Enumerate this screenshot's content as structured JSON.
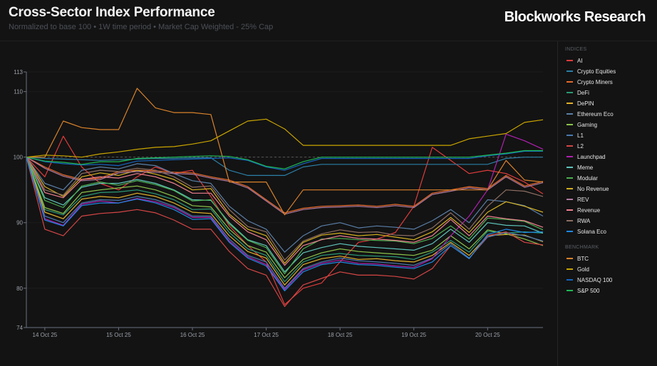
{
  "header": {
    "title": "Cross-Sector Index Performance",
    "subtitle": "Normalized to base 100 • 1W time period • Market Cap Weighted - 25% Cap",
    "brand": "Blockworks Research"
  },
  "legend": {
    "indices_heading": "INDICES",
    "benchmark_heading": "BENCHMARK"
  },
  "chart_data": {
    "type": "line",
    "title": "Cross-Sector Index Performance",
    "ylim": [
      74,
      113
    ],
    "yticks": [
      74,
      80,
      90,
      100,
      110,
      113
    ],
    "baseline": 100,
    "grid": true,
    "legend_position": "right",
    "xticks": [
      {
        "t": "2025-10-14T00:00",
        "label": "14 Oct 25"
      },
      {
        "t": "2025-10-15T00:00",
        "label": "15 Oct 25"
      },
      {
        "t": "2025-10-16T00:00",
        "label": "16 Oct 25"
      },
      {
        "t": "2025-10-17T00:00",
        "label": "17 Oct 25"
      },
      {
        "t": "2025-10-18T00:00",
        "label": "18 Oct 25"
      },
      {
        "t": "2025-10-19T00:00",
        "label": "19 Oct 25"
      },
      {
        "t": "2025-10-20T00:00",
        "label": "20 Oct 25"
      }
    ],
    "x": [
      "2025-10-13T18:00",
      "2025-10-14T00:00",
      "2025-10-14T06:00",
      "2025-10-14T12:00",
      "2025-10-14T18:00",
      "2025-10-15T00:00",
      "2025-10-15T06:00",
      "2025-10-15T12:00",
      "2025-10-15T18:00",
      "2025-10-16T00:00",
      "2025-10-16T06:00",
      "2025-10-16T12:00",
      "2025-10-16T18:00",
      "2025-10-17T00:00",
      "2025-10-17T06:00",
      "2025-10-17T12:00",
      "2025-10-17T18:00",
      "2025-10-18T00:00",
      "2025-10-18T06:00",
      "2025-10-18T12:00",
      "2025-10-18T18:00",
      "2025-10-19T00:00",
      "2025-10-19T06:00",
      "2025-10-19T12:00",
      "2025-10-19T18:00",
      "2025-10-20T00:00",
      "2025-10-20T06:00",
      "2025-10-20T12:00",
      "2025-10-20T18:00"
    ],
    "series": [
      {
        "name": "AI",
        "group": "indices",
        "color": "#e03b3b",
        "values": [
          100,
          97,
          103.2,
          98.5,
          96,
          95,
          97,
          98.5,
          97.5,
          98,
          94,
          89.5,
          86.5,
          84,
          77.5,
          80,
          80.8,
          84,
          87,
          87.5,
          88.5,
          92.5,
          101.5,
          99.5,
          97.5,
          98,
          97.5,
          96.2,
          94.4
        ]
      },
      {
        "name": "Crypto Equities",
        "group": "indices",
        "color": "#2b7fa6",
        "values": [
          100,
          99.8,
          99.7,
          99.6,
          99.5,
          99.6,
          99.7,
          99.8,
          99.8,
          99.9,
          99.9,
          98,
          97.2,
          97.2,
          97.2,
          98.5,
          98.9,
          98.9,
          98.9,
          98.9,
          98.9,
          98.9,
          98.9,
          98.9,
          98.9,
          98.9,
          99.8,
          100,
          100
        ]
      },
      {
        "name": "Crypto Miners",
        "group": "indices",
        "color": "#e56a2a",
        "values": [
          100,
          98.5,
          97.3,
          96.6,
          96.8,
          97.8,
          98,
          97.9,
          97.7,
          97.6,
          97,
          96.5,
          95.5,
          93.5,
          91.5,
          92.2,
          92.5,
          92.6,
          92.7,
          92.5,
          92.8,
          92.5,
          94.5,
          95,
          95.5,
          95.2,
          97.2,
          95.6,
          96.3
        ]
      },
      {
        "name": "DeFi",
        "group": "indices",
        "color": "#2a9a77",
        "values": [
          100,
          92,
          91.2,
          94,
          94.6,
          94.7,
          95,
          94.4,
          93.5,
          92,
          92.1,
          88.5,
          86,
          85,
          81,
          84,
          85,
          85.3,
          85,
          84.9,
          84.8,
          84.4,
          85.5,
          87.3,
          85.5,
          88.7,
          88.4,
          88.6,
          88.4
        ]
      },
      {
        "name": "DePIN",
        "group": "indices",
        "color": "#e0b02a",
        "values": [
          100,
          91.6,
          90.6,
          93.6,
          94,
          93.8,
          94.5,
          94,
          93,
          91.6,
          91.4,
          88,
          85.6,
          84.6,
          80.5,
          83.6,
          84.5,
          84.9,
          84.4,
          84.5,
          84.2,
          84,
          85,
          87,
          85,
          88,
          88.2,
          88.1,
          87.1
        ]
      },
      {
        "name": "Ethereum Eco",
        "group": "indices",
        "color": "#5a7fa8",
        "values": [
          100,
          96,
          95,
          98,
          98.5,
          98.2,
          99,
          98.7,
          97.5,
          96.4,
          96,
          92.5,
          90.3,
          89,
          85.5,
          88,
          89.5,
          90,
          89.2,
          89.5,
          89.3,
          89,
          90.3,
          92,
          90,
          93.5,
          93.2,
          92.6,
          91
        ]
      },
      {
        "name": "Gaming",
        "group": "indices",
        "color": "#8bc34a",
        "values": [
          100,
          92.3,
          91.4,
          94.6,
          95,
          95.3,
          95.6,
          95,
          94,
          92.6,
          92.4,
          89,
          86.5,
          85.5,
          81.6,
          84.4,
          85.4,
          86,
          85.6,
          85.4,
          85.2,
          85,
          85.8,
          88,
          86,
          88.9,
          88.3,
          87.5,
          86.5
        ]
      },
      {
        "name": "L1",
        "group": "indices",
        "color": "#4a78b0",
        "values": [
          100,
          91,
          90,
          93,
          93.5,
          93.4,
          94,
          93.5,
          92.5,
          91,
          91,
          87.5,
          85,
          84,
          80,
          83,
          84,
          84.6,
          84.2,
          84,
          83.8,
          83.5,
          84.6,
          86.8,
          84.6,
          87.8,
          88.5,
          88,
          87.2
        ]
      },
      {
        "name": "L2",
        "group": "indices",
        "color": "#d64545",
        "values": [
          100,
          89,
          88,
          91,
          91.4,
          91.6,
          92,
          91.5,
          90.4,
          89,
          89,
          85.6,
          83,
          82,
          77.2,
          80.5,
          81.5,
          82.5,
          82,
          82,
          81.8,
          81.4,
          83,
          86.5,
          84.5,
          88,
          88.6,
          87,
          86.6
        ]
      },
      {
        "name": "Launchpad",
        "group": "indices",
        "color": "#b020b0",
        "values": [
          100,
          90.6,
          89.6,
          92.8,
          93.3,
          93,
          93.7,
          93.2,
          92.3,
          90.8,
          90.8,
          87.2,
          84.8,
          83.6,
          79.8,
          82.8,
          83.8,
          84.3,
          83.8,
          83.7,
          83.4,
          83.2,
          84.5,
          88,
          91,
          95,
          103.5,
          102.5,
          101.2
        ]
      },
      {
        "name": "Meme",
        "group": "indices",
        "color": "#5ec4bc",
        "values": [
          100,
          93.8,
          92.7,
          95.4,
          96,
          96,
          96.6,
          96,
          95,
          93.5,
          93.4,
          90,
          87.4,
          86.5,
          82.5,
          85.4,
          86.2,
          86.8,
          86.4,
          86.2,
          86,
          85.8,
          86.8,
          89,
          87,
          90,
          89.6,
          89.5,
          88.4
        ]
      },
      {
        "name": "Modular",
        "group": "indices",
        "color": "#4caf50",
        "values": [
          100,
          93.4,
          92.3,
          95.6,
          96.2,
          95.7,
          96.4,
          95.8,
          94.9,
          93.3,
          93.5,
          89.8,
          87.3,
          86.2,
          82.2,
          86,
          87.5,
          87.6,
          87.4,
          87.3,
          87.2,
          86.8,
          87.6,
          89.5,
          87.5,
          90.7,
          90.5,
          90.2,
          88.9
        ]
      },
      {
        "name": "No Revenue",
        "group": "indices",
        "color": "#d4b020",
        "values": [
          100,
          95.5,
          94,
          97,
          97.6,
          97.2,
          98,
          97.4,
          96.6,
          95,
          95.2,
          91.3,
          89,
          88,
          83.8,
          87,
          88.1,
          88.4,
          88,
          88.2,
          87.8,
          87.4,
          88.6,
          90.8,
          88.5,
          91.6,
          93.2,
          92.5,
          91.6
        ]
      },
      {
        "name": "REV",
        "group": "indices",
        "color": "#b07aa0",
        "values": [
          100,
          98.3,
          97.1,
          96.4,
          96.6,
          97.6,
          97.8,
          97.7,
          97.5,
          97.4,
          96.8,
          96.3,
          95.3,
          93.3,
          91.3,
          92,
          92.3,
          92.4,
          92.5,
          92.3,
          92.6,
          92.3,
          94.3,
          94.8,
          95.3,
          95,
          97,
          95.4,
          96.1
        ]
      },
      {
        "name": "Revenue",
        "group": "indices",
        "color": "#f08090",
        "values": [
          100,
          94.6,
          93.8,
          96.6,
          97,
          96.8,
          97.5,
          97,
          96,
          94.5,
          94.5,
          91,
          88.6,
          87.4,
          83.5,
          86.5,
          87.4,
          88,
          87.6,
          87.5,
          87.3,
          87,
          88,
          90.5,
          88,
          91,
          90.6,
          90.3,
          89.3
        ]
      },
      {
        "name": "RWA",
        "group": "indices",
        "color": "#8d6e63",
        "values": [
          100,
          95,
          94.2,
          97.5,
          98,
          97.8,
          98.3,
          98,
          97,
          95.4,
          95.6,
          92,
          89.4,
          88.6,
          84.3,
          87.2,
          88.3,
          88.9,
          88.5,
          88.6,
          88.1,
          88,
          89.2,
          91.5,
          89,
          92.5,
          95,
          94.8,
          94
        ]
      },
      {
        "name": "Solana Eco",
        "group": "indices",
        "color": "#1e88e5",
        "values": [
          100,
          90.4,
          89.5,
          92.6,
          93,
          93,
          93.6,
          93,
          92,
          90.5,
          90.6,
          87,
          84.6,
          83.4,
          79.6,
          82.5,
          83.6,
          84,
          83.6,
          83.5,
          83.2,
          83,
          84,
          86.5,
          84.5,
          88.2,
          89,
          88.5,
          88.6
        ]
      },
      {
        "name": "BTC",
        "group": "benchmark",
        "color": "#d9822b",
        "values": [
          100,
          100,
          105.5,
          104.5,
          104.2,
          104.2,
          110.5,
          107.5,
          106.8,
          106.8,
          106.5,
          96.2,
          96.2,
          96.2,
          91.2,
          95,
          95,
          95,
          95,
          95,
          95,
          95,
          95,
          95,
          95,
          95,
          99.5,
          96.5,
          96.2
        ]
      },
      {
        "name": "Gold",
        "group": "benchmark",
        "color": "#c9a400",
        "values": [
          100,
          100.3,
          100.2,
          100,
          100.5,
          100.8,
          101.2,
          101.5,
          101.6,
          102,
          102.5,
          104,
          105.5,
          105.8,
          104.3,
          101.8,
          101.8,
          101.8,
          101.8,
          101.8,
          101.8,
          101.8,
          101.8,
          101.8,
          102.8,
          103.2,
          103.6,
          105.3,
          105.7
        ]
      },
      {
        "name": "NASDAQ 100",
        "group": "benchmark",
        "color": "#1565c0",
        "values": [
          100,
          99.3,
          99,
          98.8,
          98.9,
          98.7,
          99.4,
          99.5,
          99.6,
          99.7,
          99.8,
          99.9,
          99.5,
          98.5,
          98,
          99,
          99.8,
          99.8,
          99.8,
          99.8,
          99.8,
          99.8,
          99.8,
          99.8,
          99.8,
          100.2,
          100.5,
          100.9,
          100.9
        ]
      },
      {
        "name": "S&P 500",
        "group": "benchmark",
        "color": "#1db954",
        "values": [
          100,
          99.4,
          99.2,
          98.9,
          99.3,
          99.3,
          99.8,
          99.9,
          100,
          100.1,
          100.2,
          100.1,
          99.6,
          98.6,
          98.2,
          99.3,
          100,
          100,
          100,
          100,
          100,
          100,
          100,
          100,
          100,
          100.3,
          100.6,
          101,
          101
        ]
      }
    ]
  }
}
